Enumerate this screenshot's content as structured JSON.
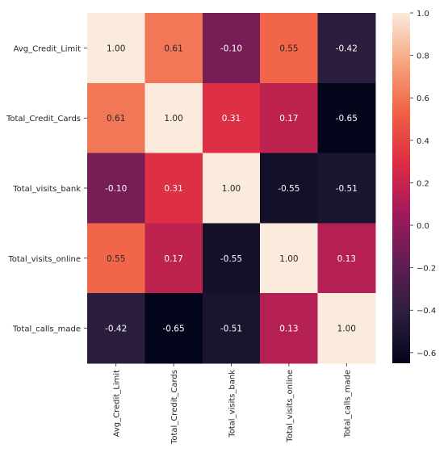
{
  "chart_data": {
    "type": "heatmap",
    "title": "",
    "xlabel": "",
    "ylabel": "",
    "x_labels": [
      "Avg_Credit_Limit",
      "Total_Credit_Cards",
      "Total_visits_bank",
      "Total_visits_online",
      "Total_calls_made"
    ],
    "y_labels": [
      "Avg_Credit_Limit",
      "Total_Credit_Cards",
      "Total_visits_bank",
      "Total_visits_online",
      "Total_calls_made"
    ],
    "values": [
      [
        1.0,
        0.61,
        -0.1,
        0.55,
        -0.42
      ],
      [
        0.61,
        1.0,
        0.31,
        0.17,
        -0.65
      ],
      [
        -0.1,
        0.31,
        1.0,
        -0.55,
        -0.51
      ],
      [
        0.55,
        0.17,
        -0.55,
        1.0,
        0.13
      ],
      [
        -0.42,
        -0.65,
        -0.51,
        0.13,
        1.0
      ]
    ],
    "annotation_labels": [
      [
        "1.00",
        "0.61",
        "-0.10",
        "0.55",
        "-0.42"
      ],
      [
        "0.61",
        "1.00",
        "0.31",
        "0.17",
        "-0.65"
      ],
      [
        "-0.10",
        "0.31",
        "1.00",
        "-0.55",
        "-0.51"
      ],
      [
        "0.55",
        "0.17",
        "-0.55",
        "1.00",
        "0.13"
      ],
      [
        "-0.42",
        "-0.65",
        "-0.51",
        "0.13",
        "1.00"
      ]
    ],
    "colorbar": {
      "min": -0.65,
      "max": 1.0,
      "tick_values": [
        -0.6,
        -0.4,
        -0.2,
        0.0,
        0.2,
        0.4,
        0.6,
        0.8,
        1.0
      ],
      "tick_labels": [
        "−0.6",
        "−0.4",
        "−0.2",
        "0.0",
        "0.2",
        "0.4",
        "0.6",
        "0.8",
        "1.0"
      ]
    },
    "colormap": "rocket",
    "colormap_stops": [
      "#03051a",
      "#2c1e3e",
      "#611f53",
      "#a11a5b",
      "#dd2c45",
      "#f06043",
      "#f6a47c",
      "#faebdd"
    ],
    "grid": false,
    "legend": "colorbar-right"
  }
}
